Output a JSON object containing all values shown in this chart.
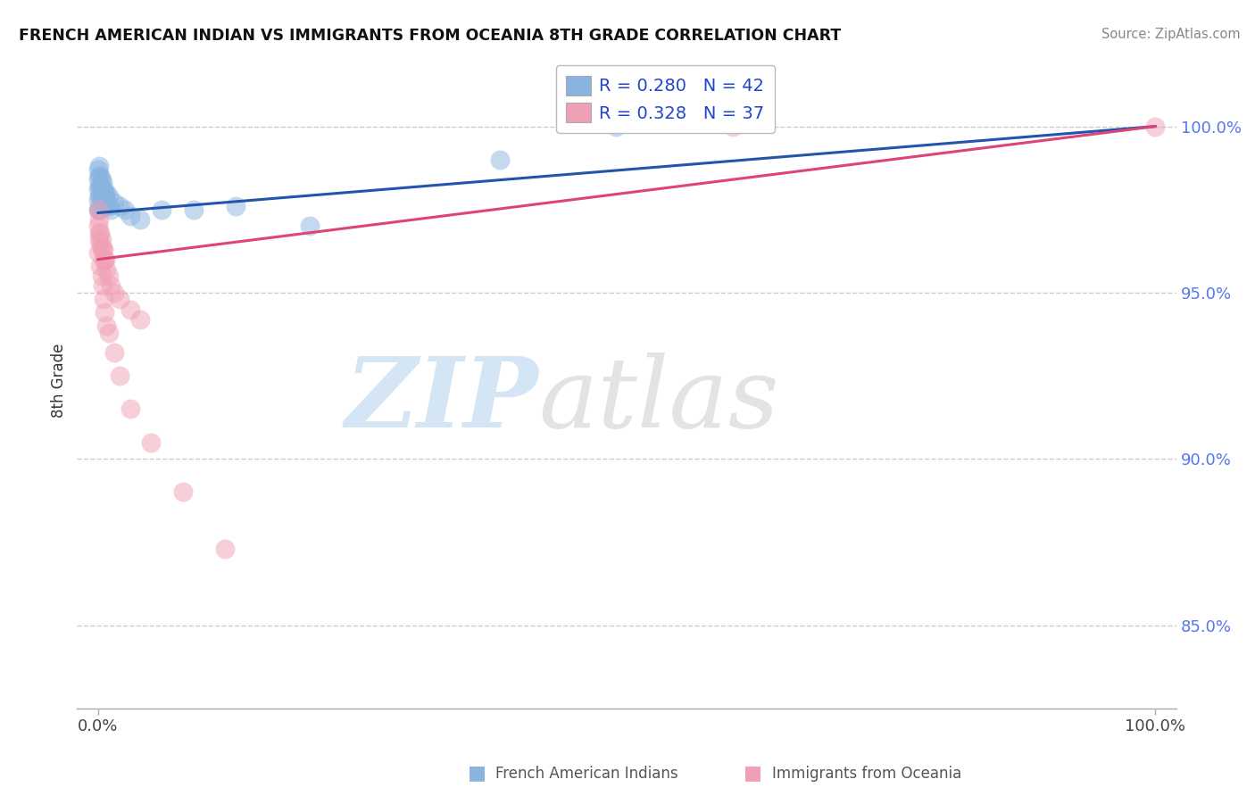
{
  "title": "FRENCH AMERICAN INDIAN VS IMMIGRANTS FROM OCEANIA 8TH GRADE CORRELATION CHART",
  "source": "Source: ZipAtlas.com",
  "ylabel": "8th Grade",
  "blue_color": "#8ab4e0",
  "pink_color": "#f0a0b5",
  "blue_line_color": "#2255aa",
  "pink_line_color": "#dd4477",
  "legend_text1": "R = 0.280   N = 42",
  "legend_text2": "R = 0.328   N = 37",
  "y_ticks": [
    0.85,
    0.9,
    0.95,
    1.0
  ],
  "y_tick_labels": [
    "85.0%",
    "90.0%",
    "95.0%",
    "100.0%"
  ],
  "x_tick_labels": [
    "0.0%",
    "100.0%"
  ],
  "blue_x": [
    0.0,
    0.0,
    0.0,
    0.0,
    0.0,
    0.001,
    0.001,
    0.001,
    0.001,
    0.001,
    0.002,
    0.002,
    0.002,
    0.002,
    0.003,
    0.003,
    0.003,
    0.004,
    0.004,
    0.004,
    0.005,
    0.005,
    0.006,
    0.006,
    0.007,
    0.007,
    0.008,
    0.008,
    0.01,
    0.01,
    0.012,
    0.015,
    0.02,
    0.025,
    0.03,
    0.04,
    0.06,
    0.09,
    0.13,
    0.2,
    0.38,
    0.49
  ],
  "blue_y": [
    0.975,
    0.978,
    0.981,
    0.984,
    0.987,
    0.975,
    0.979,
    0.982,
    0.985,
    0.988,
    0.975,
    0.979,
    0.982,
    0.985,
    0.978,
    0.981,
    0.984,
    0.977,
    0.98,
    0.983,
    0.978,
    0.981,
    0.977,
    0.98,
    0.976,
    0.979,
    0.977,
    0.98,
    0.976,
    0.979,
    0.975,
    0.977,
    0.976,
    0.975,
    0.973,
    0.972,
    0.975,
    0.975,
    0.976,
    0.97,
    0.99,
    1.0
  ],
  "pink_x": [
    0.0,
    0.0,
    0.001,
    0.001,
    0.002,
    0.002,
    0.003,
    0.003,
    0.004,
    0.005,
    0.005,
    0.006,
    0.007,
    0.008,
    0.01,
    0.012,
    0.015,
    0.02,
    0.03,
    0.04,
    0.0,
    0.001,
    0.002,
    0.003,
    0.004,
    0.005,
    0.006,
    0.008,
    0.01,
    0.015,
    0.02,
    0.03,
    0.05,
    0.08,
    0.12,
    0.6,
    1.0
  ],
  "pink_y": [
    0.97,
    0.975,
    0.968,
    0.972,
    0.965,
    0.968,
    0.963,
    0.966,
    0.963,
    0.96,
    0.963,
    0.96,
    0.96,
    0.957,
    0.955,
    0.952,
    0.95,
    0.948,
    0.945,
    0.942,
    0.962,
    0.966,
    0.958,
    0.955,
    0.952,
    0.948,
    0.944,
    0.94,
    0.938,
    0.932,
    0.925,
    0.915,
    0.905,
    0.89,
    0.873,
    1.0,
    1.0
  ],
  "blue_line_x0": 0.0,
  "blue_line_x1": 1.0,
  "blue_line_y0": 0.974,
  "blue_line_y1": 1.0,
  "pink_line_x0": 0.0,
  "pink_line_x1": 1.0,
  "pink_line_y0": 0.96,
  "pink_line_y1": 1.0,
  "xlim": [
    -0.02,
    1.02
  ],
  "ylim": [
    0.825,
    1.022
  ]
}
